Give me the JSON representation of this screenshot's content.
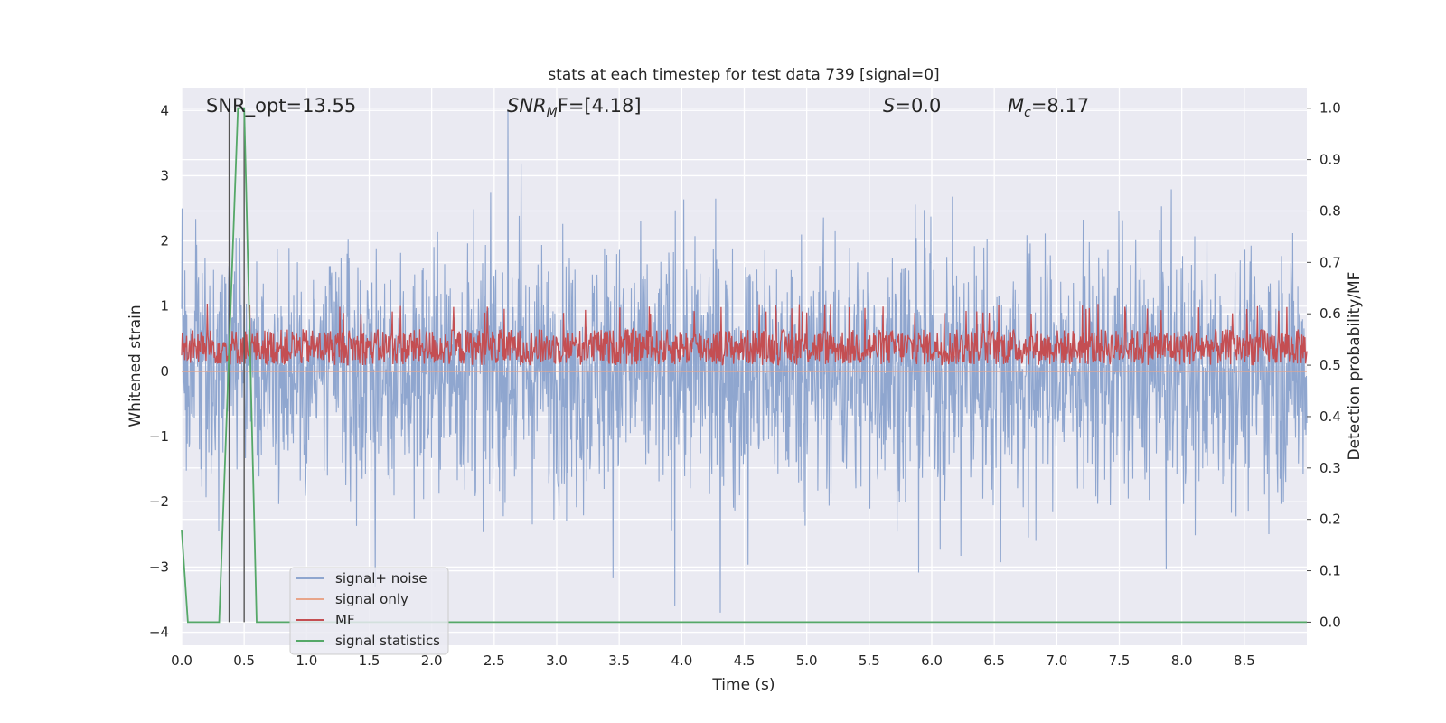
{
  "chart_data": {
    "type": "line",
    "title": "stats at each timestep for test data 739 [signal=0]",
    "xlabel": "Time (s)",
    "ylabel": "Whitened strain",
    "ylabel_right": "Detection probability/MF",
    "xlim": [
      0.0,
      9.0
    ],
    "ylim": [
      -4.2,
      4.35
    ],
    "ylim_right": [
      -0.045,
      1.04
    ],
    "grid": true,
    "legend_position": "lower-left",
    "xticks": [
      "0.0",
      "0.5",
      "1.0",
      "1.5",
      "2.0",
      "2.5",
      "3.0",
      "3.5",
      "4.0",
      "4.5",
      "5.0",
      "5.5",
      "6.0",
      "6.5",
      "7.0",
      "7.5",
      "8.0",
      "8.5"
    ],
    "yticks_left": [
      "4",
      "3",
      "2",
      "1",
      "0",
      "−1",
      "−2",
      "−3",
      "−4"
    ],
    "yticks_right": [
      "1.0",
      "0.9",
      "0.8",
      "0.7",
      "0.6",
      "0.5",
      "0.4",
      "0.3",
      "0.2",
      "0.1",
      "0.0"
    ],
    "annotations": {
      "snr_opt": "SNR_opt=13.55",
      "snr_mf_name": "SNR",
      "snr_mf_sub": "M",
      "snr_mf_suffix": "F=[4.18]",
      "s_name": "S",
      "s_value": "=0.0",
      "mc_name": "M",
      "mc_sub": "c",
      "mc_value": "=8.17"
    },
    "colors": {
      "noise": "#8fa6cf",
      "signal_only": "#e8a58a",
      "mf": "#c44e52",
      "statistics": "#55a868",
      "vlines": "#555555",
      "background": "#eaeaf2",
      "grid": "#ffffff"
    },
    "series": [
      {
        "name": "signal+ noise",
        "kind": "noise",
        "amplitude_range": [
          -3.7,
          4.0
        ],
        "typical_band": [
          -1.6,
          1.7
        ]
      },
      {
        "name": "signal only",
        "kind": "flat",
        "values": [
          0.0
        ]
      },
      {
        "name": "MF",
        "kind": "noise",
        "axis": "right",
        "range": [
          0.5,
          0.6
        ],
        "peak": 0.62
      },
      {
        "name": "signal statistics",
        "axis": "right",
        "x": [
          0.0,
          0.05,
          0.1,
          0.3,
          0.45,
          0.5,
          0.6,
          0.62,
          9.0
        ],
        "values": [
          0.18,
          0.0,
          0.0,
          0.0,
          1.0,
          1.0,
          0.0,
          0.0,
          0.0
        ]
      }
    ],
    "vlines": [
      0.38,
      0.5
    ]
  },
  "legend": {
    "items": [
      "signal+ noise",
      "signal only",
      "MF",
      "signal statistics"
    ]
  }
}
